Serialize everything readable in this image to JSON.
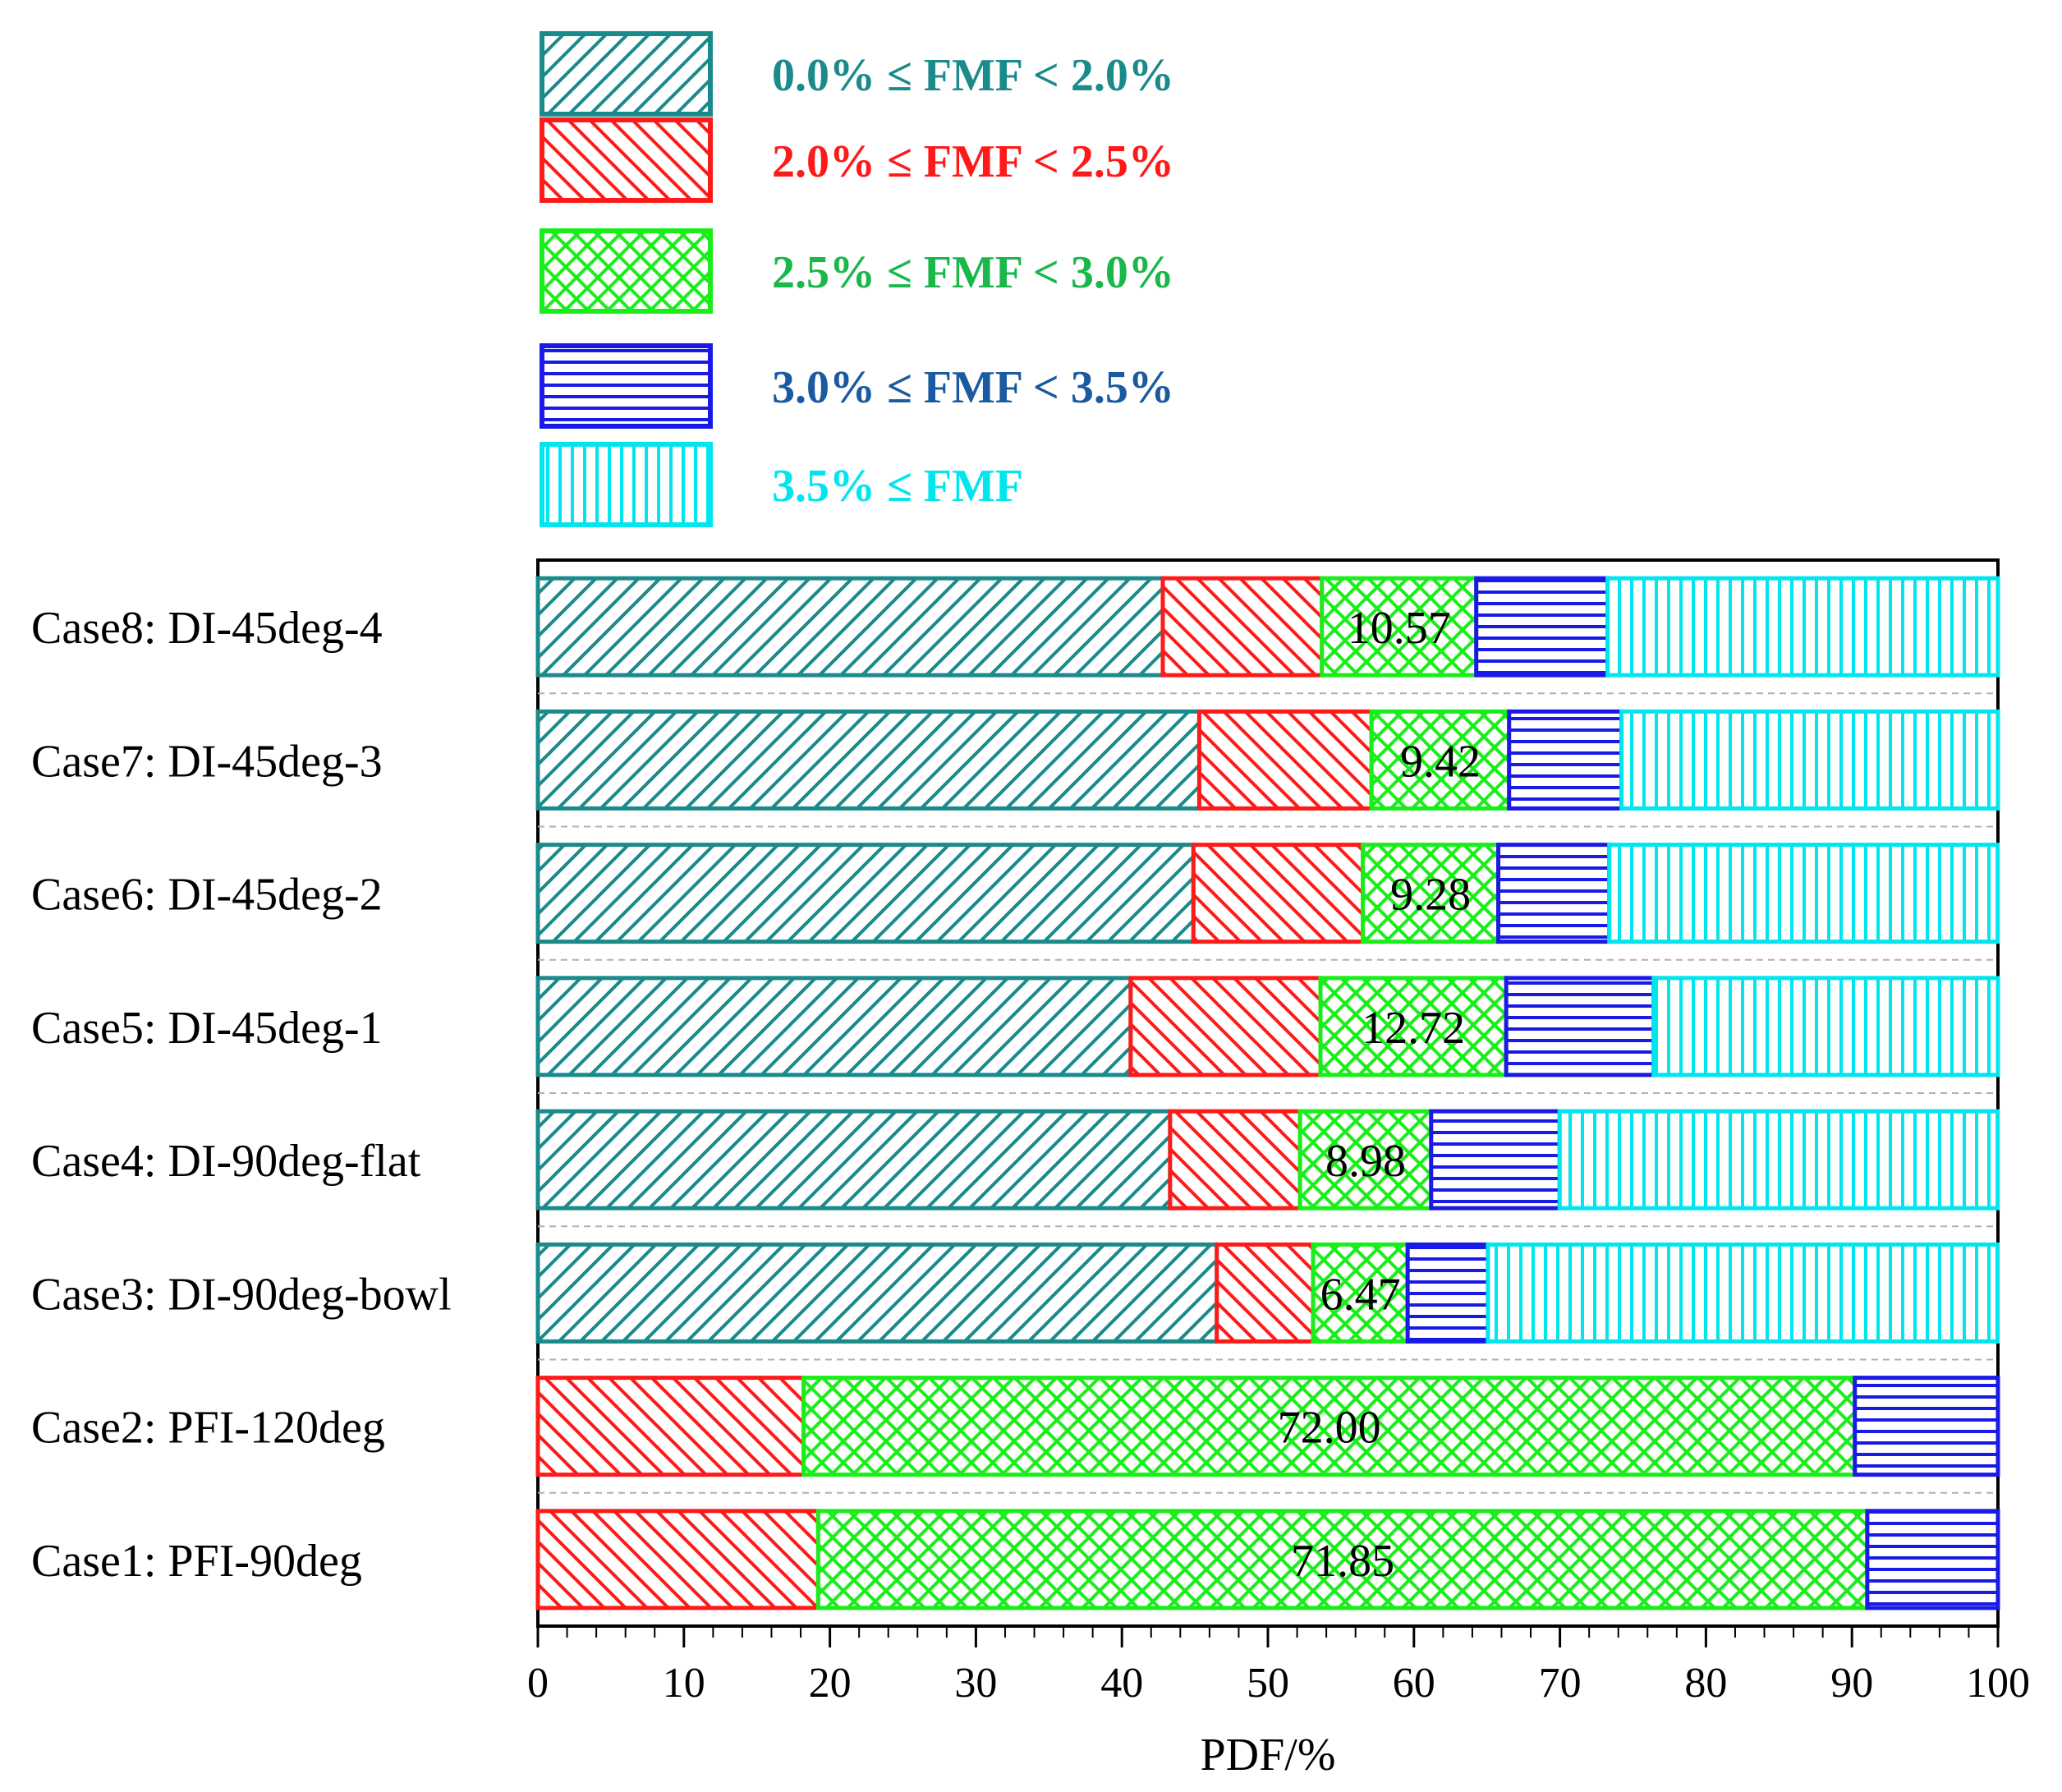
{
  "chart_data": {
    "type": "bar",
    "orientation": "horizontal",
    "stacked": true,
    "title": "",
    "xlabel": "PDF/%",
    "ylabel": "",
    "xlim": [
      0,
      100
    ],
    "x_ticks": [
      "0",
      "10",
      "20",
      "30",
      "40",
      "50",
      "60",
      "70",
      "80",
      "90",
      "100"
    ],
    "categories": [
      "Case8: DI-45deg-4",
      "Case7: DI-45deg-3",
      "Case6: DI-45deg-2",
      "Case5: DI-45deg-1",
      "Case4: DI-90deg-flat",
      "Case3: DI-90deg-bowl",
      "Case2: PFI-120deg",
      "Case1: PFI-90deg"
    ],
    "series": [
      {
        "name": "0.0% ≤ FMF < 2.0%",
        "color": "#1a8a8a",
        "pattern": "diagonal-up",
        "values": [
          42.8,
          45.3,
          44.9,
          40.6,
          43.3,
          46.5,
          0,
          0
        ]
      },
      {
        "name": "2.0% ≤ FMF < 2.5%",
        "color": "#ff1a1a",
        "pattern": "diagonal-down",
        "values": [
          10.9,
          11.8,
          11.6,
          13.0,
          8.9,
          6.6,
          18.2,
          19.2
        ]
      },
      {
        "name": "2.5% ≤ FMF < 3.0%",
        "color": "#1aee1a",
        "pattern": "crosshatch",
        "values": [
          10.57,
          9.42,
          9.28,
          12.72,
          8.98,
          6.47,
          72.0,
          71.85
        ]
      },
      {
        "name": "3.0% ≤ FMF < 3.5%",
        "color": "#1a1ae6",
        "pattern": "horizontal",
        "values": [
          9.0,
          7.7,
          7.6,
          10.1,
          8.8,
          5.5,
          9.8,
          9.0
        ]
      },
      {
        "name": "3.5% ≤  FMF",
        "color": "#00e5ee",
        "pattern": "vertical",
        "values": [
          26.8,
          25.8,
          26.6,
          23.6,
          30.0,
          34.9,
          0,
          0
        ]
      }
    ],
    "data_labels": [
      {
        "category": "Case8: DI-45deg-4",
        "series": 2,
        "text": "10.57"
      },
      {
        "category": "Case7: DI-45deg-3",
        "series": 2,
        "text": "9.42"
      },
      {
        "category": "Case6: DI-45deg-2",
        "series": 2,
        "text": "9.28"
      },
      {
        "category": "Case5: DI-45deg-1",
        "series": 2,
        "text": "12.72"
      },
      {
        "category": "Case4: DI-90deg-flat",
        "series": 2,
        "text": "8.98"
      },
      {
        "category": "Case3: DI-90deg-bowl",
        "series": 2,
        "text": "6.47"
      },
      {
        "category": "Case2: PFI-120deg",
        "series": 2,
        "text": "72.00"
      },
      {
        "category": "Case1: PFI-90deg",
        "series": 2,
        "text": "71.85"
      }
    ],
    "legend": {
      "placement": "top",
      "text_colors": [
        "#1a8a8a",
        "#ff1a1a",
        "#1ab84a",
        "#1a5aa0",
        "#00e5ee"
      ]
    },
    "grid": "dashed separators between bars"
  }
}
